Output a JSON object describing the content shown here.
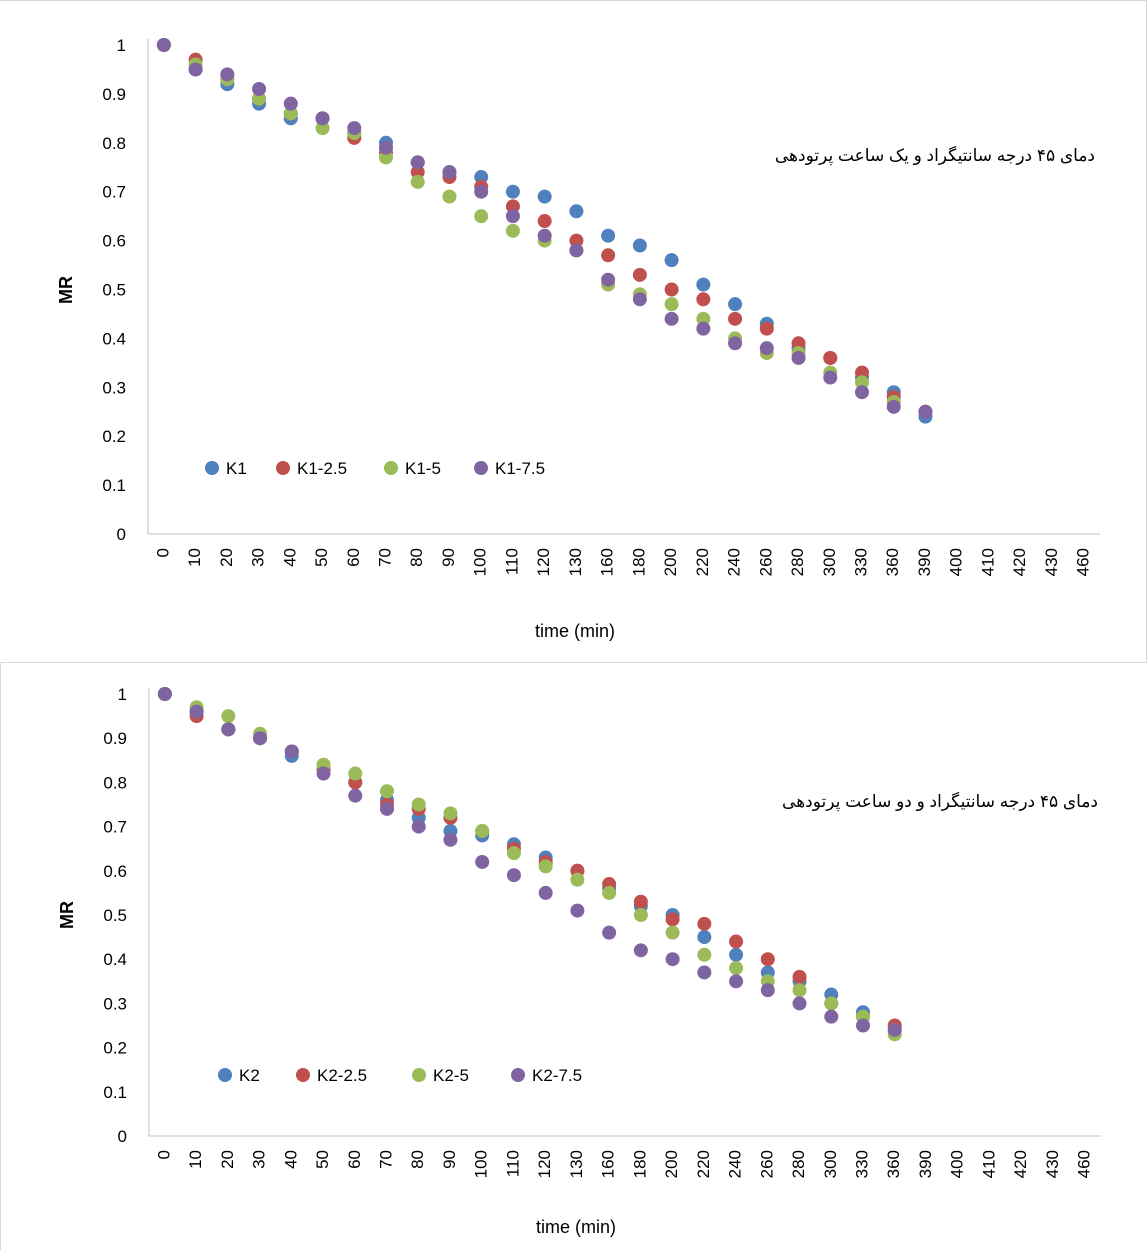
{
  "chart_data": [
    {
      "type": "scatter",
      "ylabel": "MR",
      "xlabel": "time (min)",
      "ylim": [
        0,
        1
      ],
      "yticks": [
        "0",
        "0.1",
        "0.2",
        "0.3",
        "0.4",
        "0.5",
        "0.6",
        "0.7",
        "0.8",
        "0.9",
        "1"
      ],
      "categories": [
        "0",
        "10",
        "20",
        "30",
        "40",
        "50",
        "60",
        "70",
        "80",
        "90",
        "100",
        "110",
        "120",
        "130",
        "160",
        "180",
        "200",
        "220",
        "240",
        "260",
        "280",
        "300",
        "330",
        "360",
        "390",
        "400",
        "410",
        "420",
        "430",
        "460"
      ],
      "annotation": "دمای ۴۵ درجه سانتیگراد و یک ساعت پرتودهی",
      "legend_position": "bottom-left",
      "grid": false,
      "series": [
        {
          "name": "K1",
          "color": "#4f81bd",
          "values": [
            1,
            0.95,
            0.92,
            0.88,
            0.85,
            0.85,
            0.82,
            0.8,
            0.76,
            0.74,
            0.73,
            0.7,
            0.69,
            0.66,
            0.61,
            0.59,
            0.56,
            0.51,
            0.47,
            0.43,
            0.38,
            0.36,
            0.32,
            0.29,
            0.24
          ]
        },
        {
          "name": "K1-2.5",
          "color": "#c0504d",
          "values": [
            1,
            0.97,
            0.93,
            0.89,
            0.86,
            0.85,
            0.81,
            0.78,
            0.74,
            0.73,
            0.71,
            0.67,
            0.64,
            0.6,
            0.57,
            0.53,
            0.5,
            0.48,
            0.44,
            0.42,
            0.39,
            0.36,
            0.33,
            0.28,
            0.25
          ]
        },
        {
          "name": "K1-5",
          "color": "#9bbb59",
          "values": [
            1,
            0.96,
            0.93,
            0.89,
            0.86,
            0.83,
            0.82,
            0.77,
            0.72,
            0.69,
            0.65,
            0.62,
            0.6,
            0.58,
            0.51,
            0.49,
            0.47,
            0.44,
            0.4,
            0.37,
            0.37,
            0.33,
            0.31,
            0.27,
            0.25
          ]
        },
        {
          "name": "K1-7.5",
          "color": "#8064a2",
          "values": [
            1,
            0.95,
            0.94,
            0.91,
            0.88,
            0.85,
            0.83,
            0.79,
            0.76,
            0.74,
            0.7,
            0.65,
            0.61,
            0.58,
            0.52,
            0.48,
            0.44,
            0.42,
            0.39,
            0.38,
            0.36,
            0.32,
            0.29,
            0.26,
            0.25
          ]
        }
      ]
    },
    {
      "type": "scatter",
      "ylabel": "MR",
      "xlabel": "time (min)",
      "ylim": [
        0,
        1
      ],
      "yticks": [
        "0",
        "0.1",
        "0.2",
        "0.3",
        "0.4",
        "0.5",
        "0.6",
        "0.7",
        "0.8",
        "0.9",
        "1"
      ],
      "categories": [
        "0",
        "10",
        "20",
        "30",
        "40",
        "50",
        "60",
        "70",
        "80",
        "90",
        "100",
        "110",
        "120",
        "130",
        "160",
        "180",
        "200",
        "220",
        "240",
        "260",
        "280",
        "300",
        "330",
        "360",
        "390",
        "400",
        "410",
        "420",
        "430",
        "460"
      ],
      "annotation": "دمای ۴۵ درجه سانتیگراد و دو ساعت پرتودهی",
      "legend_position": "bottom-left",
      "grid": false,
      "series": [
        {
          "name": "K2",
          "color": "#4f81bd",
          "values": [
            1,
            0.96,
            0.92,
            0.9,
            0.86,
            0.83,
            0.8,
            0.76,
            0.72,
            0.69,
            0.68,
            0.66,
            0.63,
            0.6,
            0.56,
            0.52,
            0.5,
            0.45,
            0.41,
            0.37,
            0.35,
            0.32,
            0.28,
            0.24
          ]
        },
        {
          "name": "K2-2.5",
          "color": "#c0504d",
          "values": [
            1,
            0.95,
            0.92,
            0.9,
            0.87,
            0.83,
            0.8,
            0.75,
            0.74,
            0.72,
            0.69,
            0.65,
            0.62,
            0.6,
            0.57,
            0.53,
            0.49,
            0.48,
            0.44,
            0.4,
            0.36,
            0.3,
            0.27,
            0.25
          ]
        },
        {
          "name": "K2-5",
          "color": "#9bbb59",
          "values": [
            1,
            0.97,
            0.95,
            0.91,
            0.87,
            0.84,
            0.82,
            0.78,
            0.75,
            0.73,
            0.69,
            0.64,
            0.61,
            0.58,
            0.55,
            0.5,
            0.46,
            0.41,
            0.38,
            0.35,
            0.33,
            0.3,
            0.27,
            0.23
          ]
        },
        {
          "name": "K2-7.5",
          "color": "#8064a2",
          "values": [
            1,
            0.96,
            0.92,
            0.9,
            0.87,
            0.82,
            0.77,
            0.74,
            0.7,
            0.67,
            0.62,
            0.59,
            0.55,
            0.51,
            0.46,
            0.42,
            0.4,
            0.37,
            0.35,
            0.33,
            0.3,
            0.27,
            0.25,
            0.24
          ]
        }
      ]
    }
  ]
}
